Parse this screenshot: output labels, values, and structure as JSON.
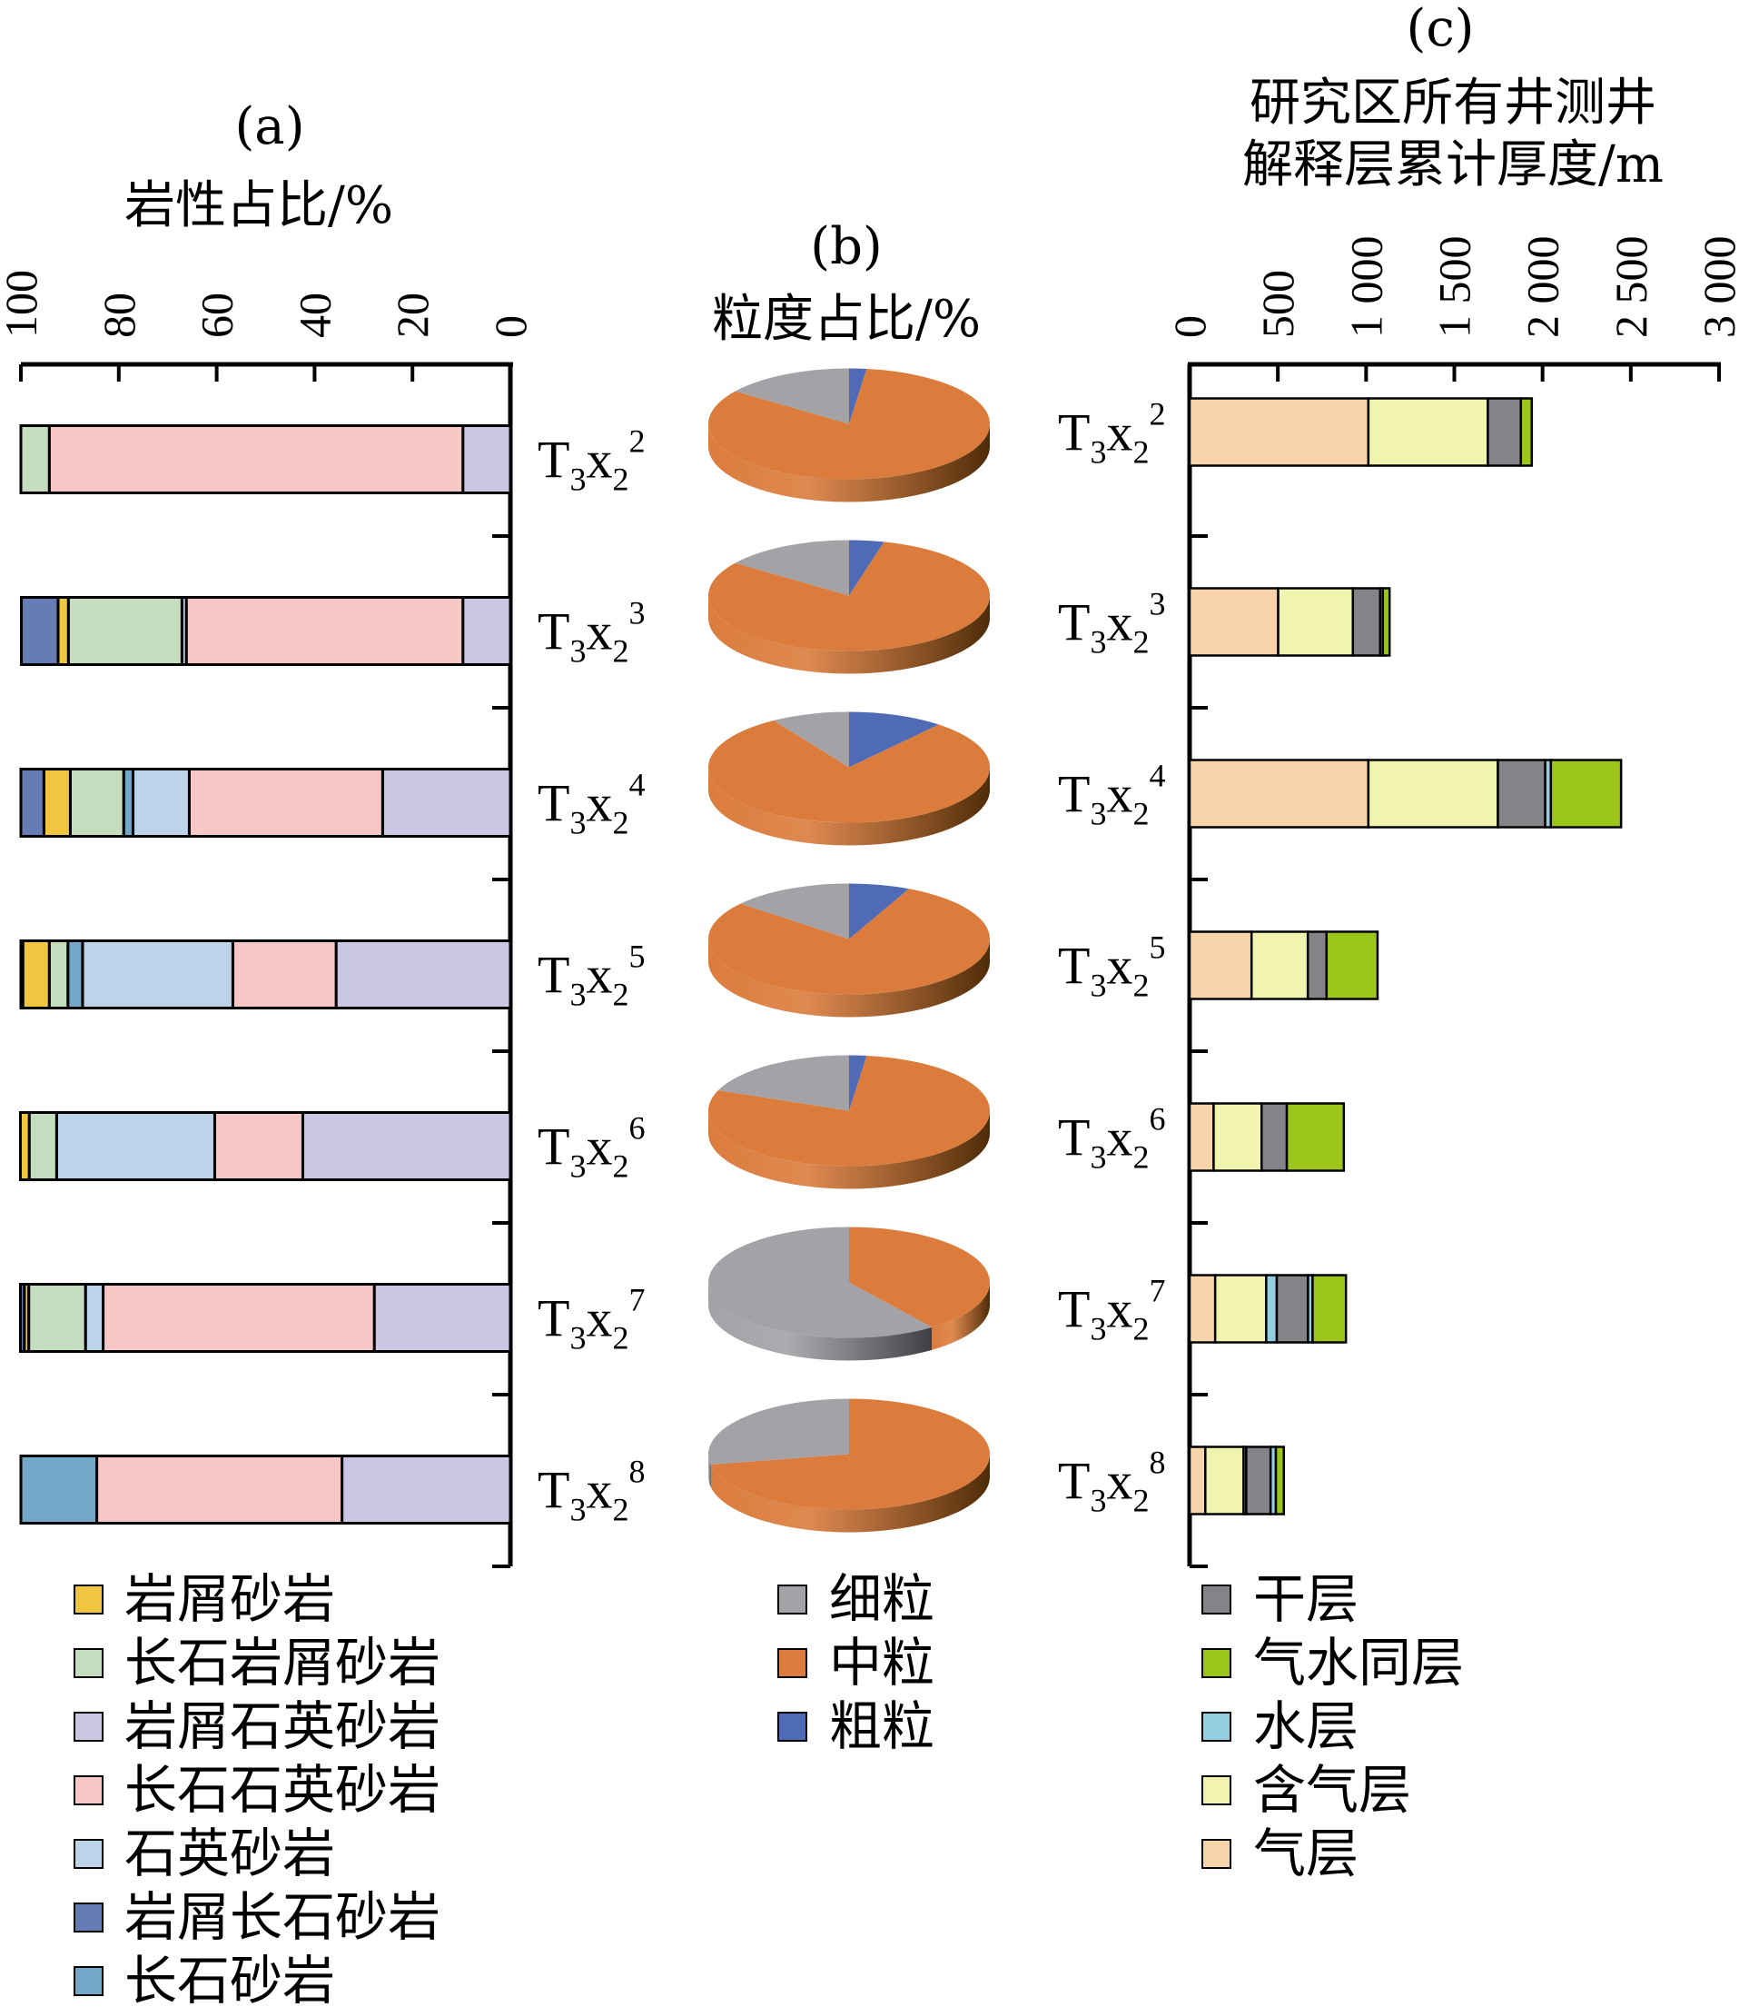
{
  "panel_a": {
    "letter": "(a)",
    "title": "岩性占比/%"
  },
  "panel_b": {
    "letter": "(b)",
    "title": "粒度占比/%"
  },
  "panel_c": {
    "letter": "(c)",
    "title_line1": "研究区所有井测井",
    "title_line2": "解释层累计厚度/m"
  },
  "categories": [
    {
      "base": "T",
      "sub1": "3",
      "mid": "x",
      "sub2": "2",
      "sup": "2"
    },
    {
      "base": "T",
      "sub1": "3",
      "mid": "x",
      "sub2": "2",
      "sup": "3"
    },
    {
      "base": "T",
      "sub1": "3",
      "mid": "x",
      "sub2": "2",
      "sup": "4"
    },
    {
      "base": "T",
      "sub1": "3",
      "mid": "x",
      "sub2": "2",
      "sup": "5"
    },
    {
      "base": "T",
      "sub1": "3",
      "mid": "x",
      "sub2": "2",
      "sup": "6"
    },
    {
      "base": "T",
      "sub1": "3",
      "mid": "x",
      "sub2": "2",
      "sup": "7"
    },
    {
      "base": "T",
      "sub1": "3",
      "mid": "x",
      "sub2": "2",
      "sup": "8"
    }
  ],
  "chart_data": [
    {
      "type": "bar",
      "orientation": "horizontal-stacked",
      "title": "岩性占比/%",
      "xlim": [
        100,
        0
      ],
      "xticks": [
        "100",
        "80",
        "60",
        "40",
        "20",
        "0"
      ],
      "stack_order_from_zero": [
        "岩屑石英砂岩",
        "长石石英砂岩",
        "石英砂岩",
        "长石砂岩",
        "长石岩屑砂岩",
        "岩屑砂岩",
        "岩屑长石砂岩"
      ],
      "series": [
        {
          "name": "岩屑砂岩",
          "color": "#F0C540",
          "values": [
            0,
            2.1,
            5.4,
            5.4,
            1.8,
            0.9,
            0
          ]
        },
        {
          "name": "长石岩屑砂岩",
          "color": "#C4DDBE",
          "values": [
            5.8,
            23.2,
            10.9,
            3.8,
            5.6,
            11.6,
            0
          ]
        },
        {
          "name": "岩屑石英砂岩",
          "color": "#CAC7E4",
          "values": [
            9.7,
            9.7,
            26.1,
            35.6,
            42.4,
            27.8,
            34.4
          ]
        },
        {
          "name": "长石石英砂岩",
          "color": "#F6C7C5",
          "values": [
            84.5,
            56.5,
            39.5,
            21.1,
            18.0,
            55.4,
            50.1
          ]
        },
        {
          "name": "石英砂岩",
          "color": "#BDD3EA",
          "values": [
            0,
            0.9,
            11.5,
            30.7,
            32.3,
            3.6,
            0
          ]
        },
        {
          "name": "岩屑长石砂岩",
          "color": "#667CB5",
          "values": [
            0,
            7.5,
            4.7,
            0.4,
            0,
            0.8,
            0
          ]
        },
        {
          "name": "长石砂岩",
          "color": "#73A7C7",
          "values": [
            0,
            0,
            1.9,
            3.0,
            0,
            0,
            15.5
          ]
        }
      ]
    },
    {
      "type": "pie",
      "title": "粒度占比/%",
      "series": [
        {
          "name": "细粒",
          "color": "#A3A2A7",
          "values": [
            15,
            15,
            9,
            14,
            19,
            60,
            28
          ]
        },
        {
          "name": "中粒",
          "color": "#DB7C3D",
          "values": [
            83,
            81,
            80,
            79,
            79,
            40,
            72
          ]
        },
        {
          "name": "粗粒",
          "color": "#4F6BB5",
          "values": [
            2,
            4,
            11,
            7,
            2,
            0,
            0
          ]
        }
      ]
    },
    {
      "type": "bar",
      "orientation": "horizontal-stacked",
      "title": "研究区所有井测井解释层累计厚度/m",
      "xlim": [
        0,
        3000
      ],
      "xticks": [
        "0",
        "500",
        "1 000",
        "1 500",
        "2 000",
        "2 500",
        "3 000"
      ],
      "layers": [
        {
          "name": "干层",
          "color": "#858388"
        },
        {
          "name": "气水同层",
          "color": "#9BC51B"
        },
        {
          "name": "水层",
          "color": "#92CDE0"
        },
        {
          "name": "含气层",
          "color": "#F1F4AE"
        },
        {
          "name": "气层",
          "color": "#F9D4AA"
        }
      ],
      "rows": [
        [
          [
            "气层",
            1013
          ],
          [
            "含气层",
            677
          ],
          [
            "干层",
            187
          ],
          [
            "气水同层",
            62
          ]
        ],
        [
          [
            "气层",
            502
          ],
          [
            "含气层",
            423
          ],
          [
            "干层",
            155
          ],
          [
            "水层",
            15
          ],
          [
            "气水同层",
            38
          ]
        ],
        [
          [
            "气层",
            1013
          ],
          [
            "含气层",
            734
          ],
          [
            "干层",
            268
          ],
          [
            "水层",
            32
          ],
          [
            "气水同层",
            398
          ]
        ],
        [
          [
            "气层",
            351
          ],
          [
            "含气层",
            319
          ],
          [
            "干层",
            106
          ],
          [
            "气水同层",
            289
          ]
        ],
        [
          [
            "气层",
            136
          ],
          [
            "含气层",
            272
          ],
          [
            "干层",
            143
          ],
          [
            "气水同层",
            323
          ]
        ],
        [
          [
            "气层",
            145
          ],
          [
            "含气层",
            289
          ],
          [
            "水层",
            60
          ],
          [
            "干层",
            177
          ],
          [
            "水层",
            26
          ],
          [
            "气水同层",
            189
          ]
        ],
        [
          [
            "气层",
            89
          ],
          [
            "含气层",
            217
          ],
          [
            "水层",
            15
          ],
          [
            "干层",
            138
          ],
          [
            "水层",
            30
          ],
          [
            "气水同层",
            45
          ]
        ]
      ]
    }
  ],
  "legend_a": [
    {
      "label": "岩屑砂岩",
      "color": "#F0C540"
    },
    {
      "label": "长石岩屑砂岩",
      "color": "#C4DDBE"
    },
    {
      "label": "岩屑石英砂岩",
      "color": "#CAC7E4"
    },
    {
      "label": "长石石英砂岩",
      "color": "#F6C7C5"
    },
    {
      "label": "石英砂岩",
      "color": "#BDD3EA"
    },
    {
      "label": "岩屑长石砂岩",
      "color": "#667CB5"
    },
    {
      "label": "长石砂岩",
      "color": "#73A7C7"
    }
  ],
  "legend_b": [
    {
      "label": "细粒",
      "color": "#A3A2A7"
    },
    {
      "label": "中粒",
      "color": "#DB7C3D"
    },
    {
      "label": "粗粒",
      "color": "#4F6BB5"
    }
  ],
  "legend_c": [
    {
      "label": "干层",
      "color": "#858388"
    },
    {
      "label": "气水同层",
      "color": "#9BC51B"
    },
    {
      "label": "水层",
      "color": "#92CDE0"
    },
    {
      "label": "含气层",
      "color": "#F1F4AE"
    },
    {
      "label": "气层",
      "color": "#F9D4AA"
    }
  ]
}
